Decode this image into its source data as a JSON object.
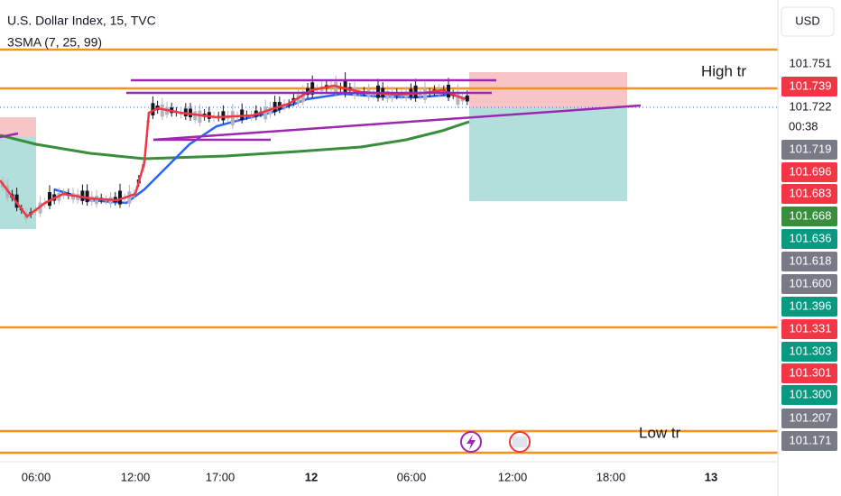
{
  "header": {
    "title": "U.S. Dollar Index, 15, TVC",
    "indicator": "3SMA (7, 25, 99)",
    "currency": "USD"
  },
  "annotations": {
    "high": "High tr",
    "low": "Low tr"
  },
  "price_axis": {
    "countdown": "00:38",
    "labels": [
      {
        "text": "101.751",
        "color": "#ffffff"
      },
      {
        "text": "101.739",
        "color": "#f23645"
      },
      {
        "text": "101.722",
        "color": "#ffffff"
      },
      {
        "text": "101.719",
        "color": "#787b86"
      },
      {
        "text": "101.696",
        "color": "#f23645"
      },
      {
        "text": "101.683",
        "color": "#f23645"
      },
      {
        "text": "101.668",
        "color": "#388e3c"
      },
      {
        "text": "101.636",
        "color": "#089981"
      },
      {
        "text": "101.618",
        "color": "#787b86"
      },
      {
        "text": "101.600",
        "color": "#787b86"
      },
      {
        "text": "101.396",
        "color": "#089981"
      },
      {
        "text": "101.331",
        "color": "#f23645"
      },
      {
        "text": "101.303",
        "color": "#089981"
      },
      {
        "text": "101.301",
        "color": "#f23645"
      },
      {
        "text": "101.300",
        "color": "#089981"
      },
      {
        "text": "101.207",
        "color": "#787b86"
      },
      {
        "text": "101.171",
        "color": "#787b86"
      }
    ]
  },
  "time_axis": [
    {
      "text": "06:00"
    },
    {
      "text": "12:00"
    },
    {
      "text": "17:00"
    },
    {
      "text": "12",
      "bold": true
    },
    {
      "text": "06:00"
    },
    {
      "text": "12:00"
    },
    {
      "text": "18:00"
    },
    {
      "text": "13",
      "bold": true
    }
  ]
}
